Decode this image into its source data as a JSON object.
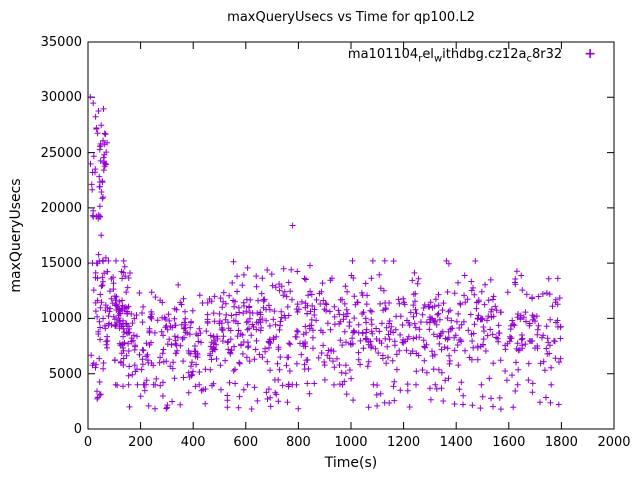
{
  "title": "maxQueryUsecs vs Time for qp100.L2",
  "x_axis": {
    "label": "Time(s)",
    "min": 0,
    "max": 2000,
    "ticks": [
      0,
      200,
      400,
      600,
      800,
      1000,
      1200,
      1400,
      1600,
      1800,
      2000
    ]
  },
  "y_axis": {
    "label": "maxQueryUsecs",
    "min": 0,
    "max": 35000,
    "ticks": [
      0,
      5000,
      10000,
      15000,
      20000,
      25000,
      30000,
      35000
    ]
  },
  "legend": {
    "marker": "+",
    "color": "#9400d3",
    "label_parts": [
      {
        "text": "ma101104"
      },
      {
        "text": "r",
        "sub": true
      },
      {
        "text": "el"
      },
      {
        "text": "w",
        "sub": true
      },
      {
        "text": "ithdbg.cz12a"
      },
      {
        "text": "c",
        "sub": true
      },
      {
        "text": "8r32"
      }
    ]
  },
  "chart_data": {
    "type": "scatter",
    "title": "maxQueryUsecs vs Time for qp100.L2",
    "xlabel": "Time(s)",
    "ylabel": "maxQueryUsecs",
    "xlim": [
      0,
      2000
    ],
    "ylim": [
      0,
      35000
    ],
    "grid": false,
    "legend_position": "top-right-inside",
    "series": [
      {
        "name": "ma101104_rel_withdbg.cz12a_c8r32",
        "marker": "+",
        "color": "#9400d3"
      }
    ],
    "seed": 7,
    "marker_half_size": 3,
    "clusters": [
      {
        "x": [
          8,
          75
        ],
        "y_dist": "gauss",
        "y_mean": 23500,
        "y_sd": 2800,
        "y_clamp": [
          15200,
          30200
        ],
        "count": 55
      },
      {
        "x": [
          12,
          75
        ],
        "y_dist": "uniform",
        "y_range": [
          4800,
          16000
        ],
        "count": 50
      },
      {
        "x": [
          10,
          60
        ],
        "y_dist": "uniform",
        "y_range": [
          2500,
          4600
        ],
        "count": 6
      },
      {
        "x": [
          75,
          160
        ],
        "y_dist": "gauss",
        "y_mean": 11000,
        "y_sd": 2100,
        "y_clamp": [
          4800,
          15200
        ],
        "count": 60
      },
      {
        "x": [
          100,
          500
        ],
        "y_dist": "gauss",
        "y_mean": 8200,
        "y_sd": 2300,
        "y_clamp": [
          4000,
          15200
        ],
        "count": 220
      },
      {
        "x": [
          500,
          760
        ],
        "y_dist": "gauss",
        "y_mean": 9800,
        "y_sd": 2200,
        "y_clamp": [
          4000,
          15200
        ],
        "count": 160
      },
      {
        "x": [
          760,
          1800
        ],
        "y_dist": "gauss",
        "y_mean": 9300,
        "y_sd": 2400,
        "y_clamp": [
          4000,
          15200
        ],
        "count": 520
      },
      {
        "x": [
          110,
          1800
        ],
        "y_dist": "uniform",
        "y_range": [
          1800,
          4500
        ],
        "count": 95
      }
    ],
    "outliers": [
      [
        778,
        18400
      ]
    ]
  }
}
